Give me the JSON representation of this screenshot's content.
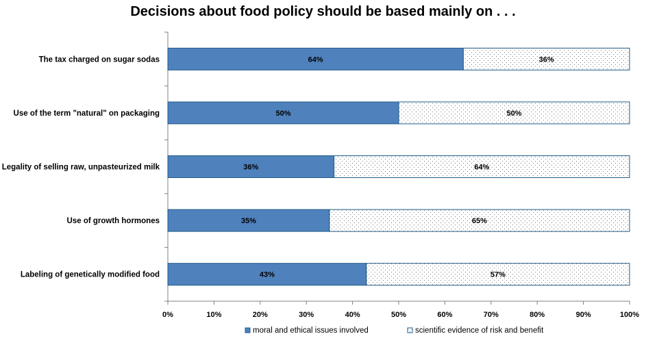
{
  "chart_data": {
    "type": "bar",
    "orientation": "horizontal",
    "stacked": true,
    "title": "Decisions about food policy should be based mainly on . . .",
    "categories": [
      "The tax charged on sugar sodas",
      "Use of the term \"natural\" on packaging",
      "Legality of selling raw, unpasteurized milk",
      "Use of growth hormones",
      "Labeling of genetically modified food"
    ],
    "series": [
      {
        "name": "moral and ethical issues involved",
        "values": [
          64,
          50,
          36,
          35,
          43
        ],
        "labels": [
          "64%",
          "50%",
          "36%",
          "35%",
          "43%"
        ],
        "color": "#4F81BD",
        "pattern": "solid"
      },
      {
        "name": "scientific evidence of risk and benefit",
        "values": [
          36,
          50,
          64,
          65,
          57
        ],
        "labels": [
          "36%",
          "50%",
          "64%",
          "65%",
          "57%"
        ],
        "color": "#FFFFFF",
        "pattern": "dotted"
      }
    ],
    "xlim": [
      0,
      100
    ],
    "xticks": [
      "0%",
      "10%",
      "20%",
      "30%",
      "40%",
      "50%",
      "60%",
      "70%",
      "80%",
      "90%",
      "100%"
    ],
    "grid": false,
    "legend_position": "bottom",
    "border_color": "#1F5A87"
  }
}
